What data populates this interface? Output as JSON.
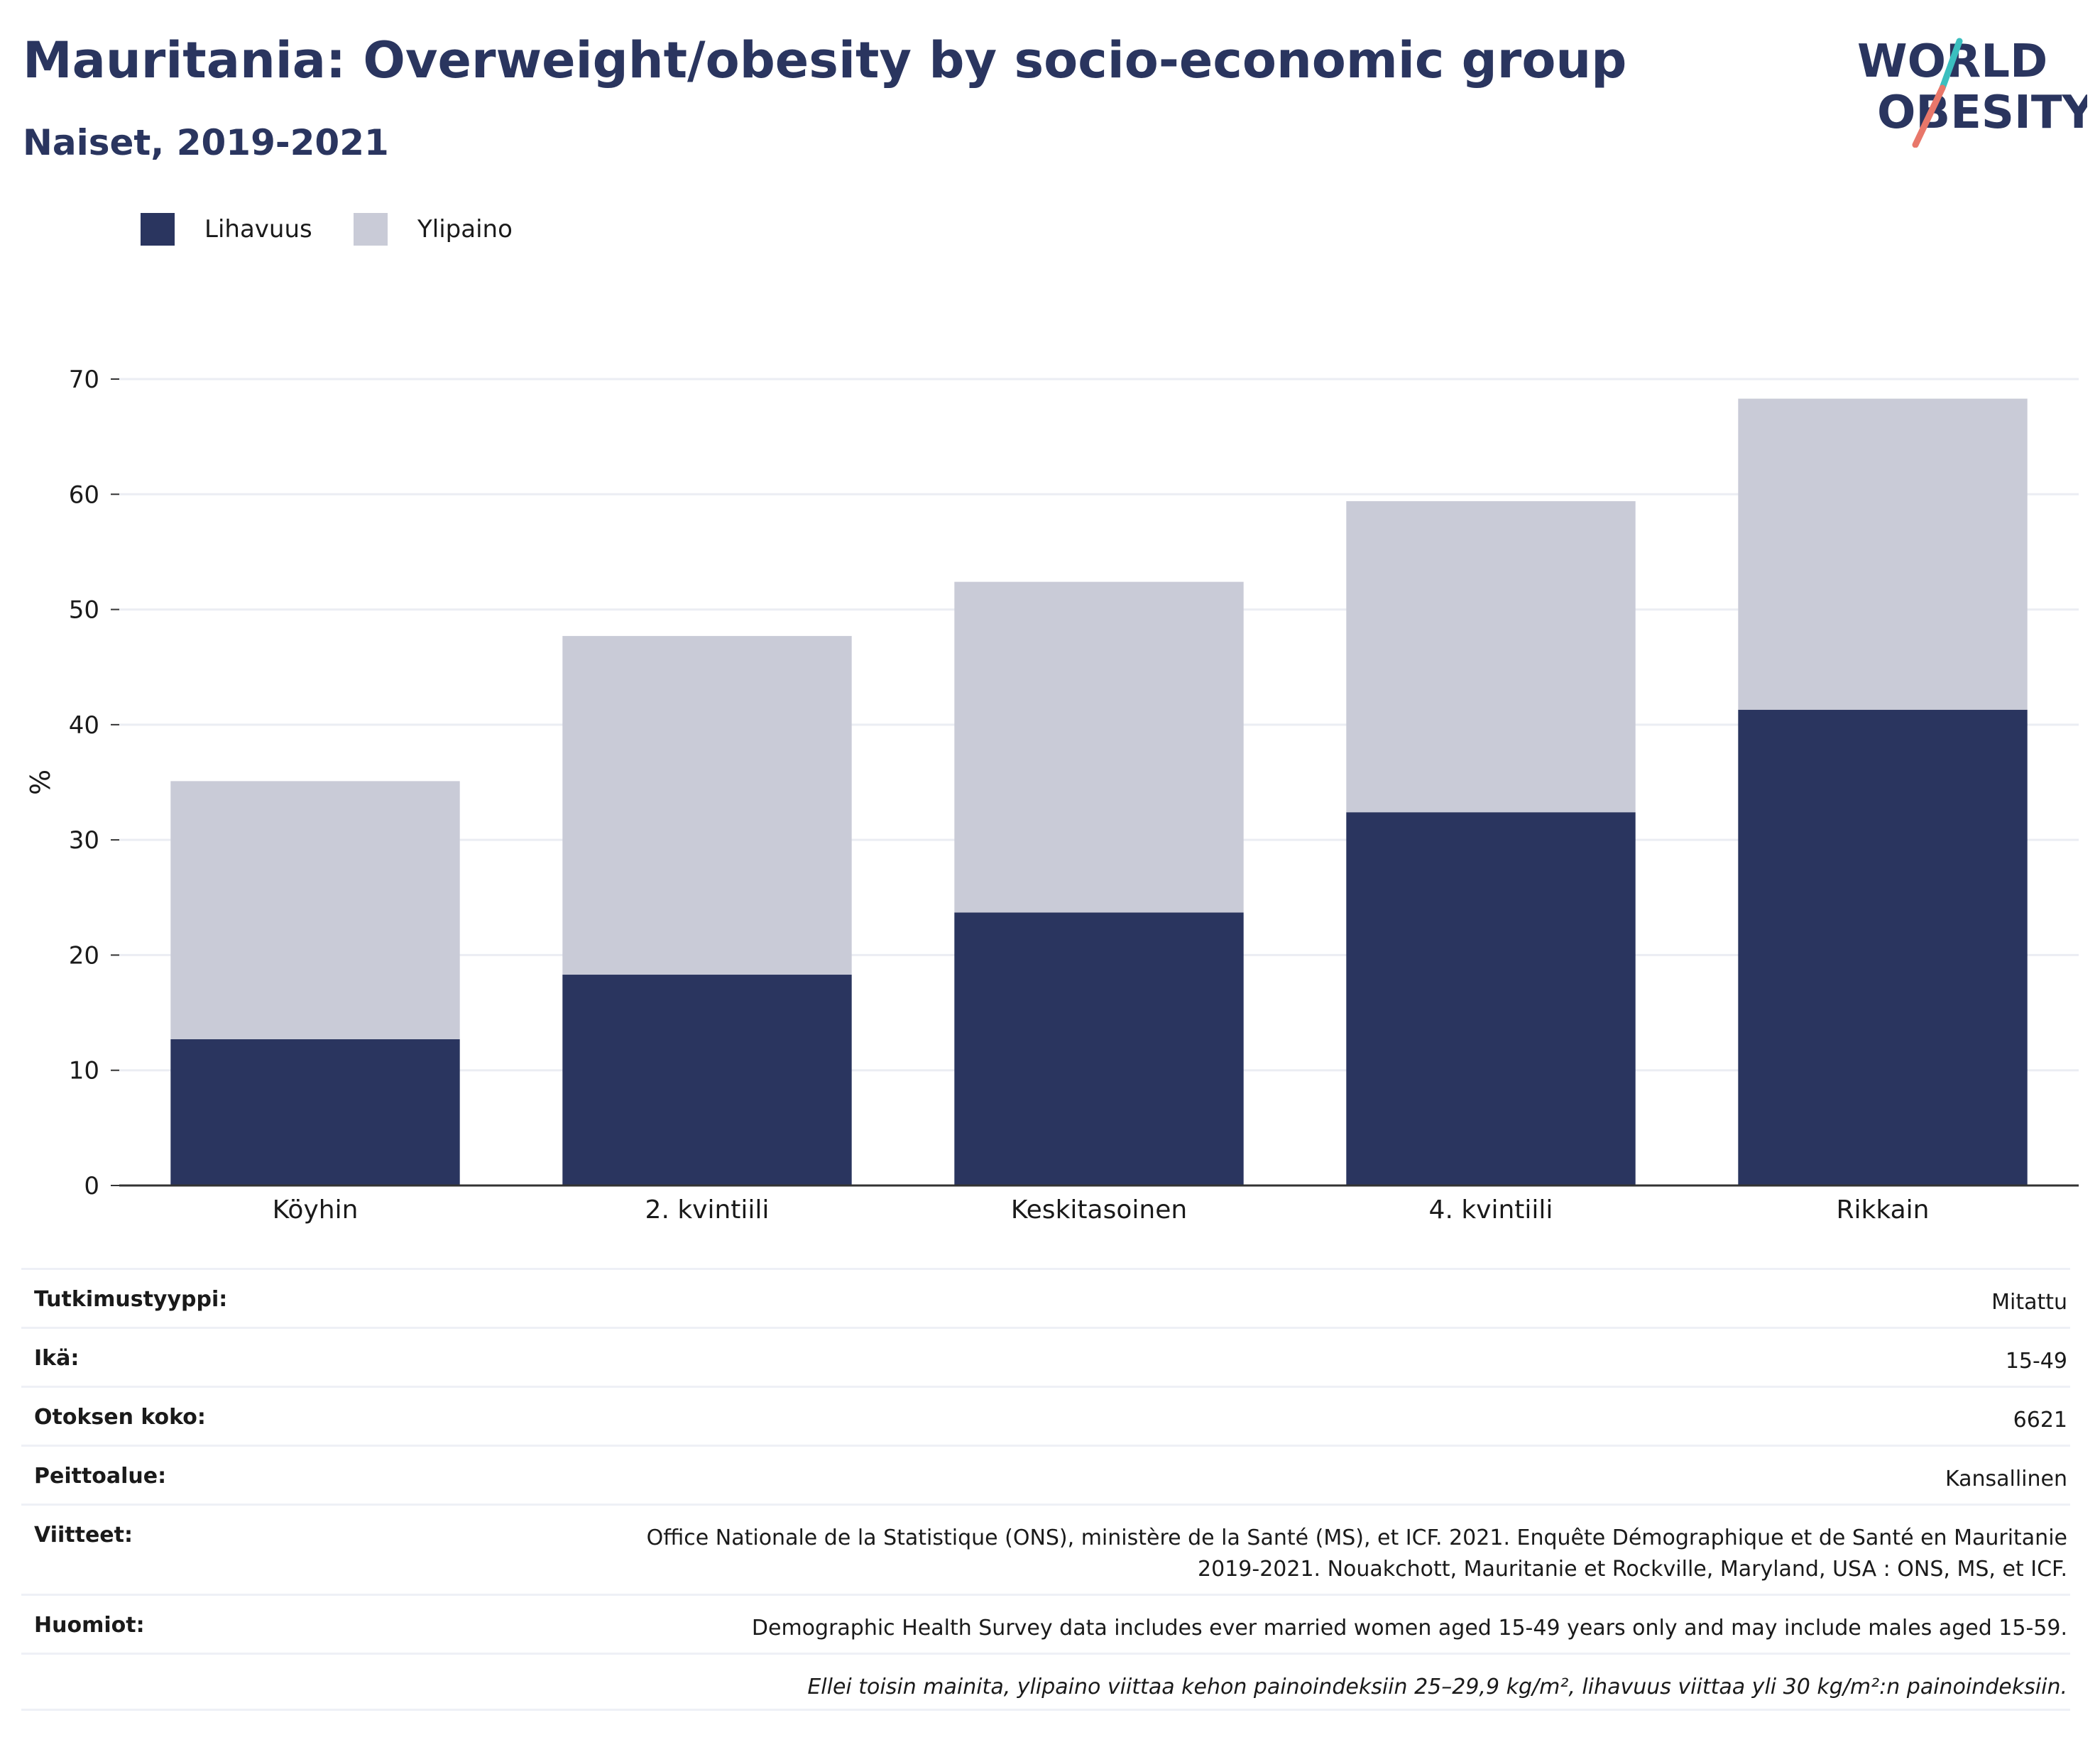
{
  "header": {
    "title": "Mauritania: Overweight/obesity by socio-economic group",
    "subtitle": "Naiset, 2019-2021"
  },
  "logo": {
    "line1": "WORLD",
    "line2": "OBESITY",
    "colors": {
      "text": "#2a355f",
      "slash_teal": "#3bbfbf",
      "slash_coral": "#e8776a"
    }
  },
  "legend": [
    {
      "label": "Lihavuus",
      "color": "#2a355f"
    },
    {
      "label": "Ylipaino",
      "color": "#c9cbd7"
    }
  ],
  "chart_data": {
    "type": "bar",
    "stacked": true,
    "categories": [
      "Köyhin",
      "2. kvintiili",
      "Keskitasoinen",
      "4. kvintiili",
      "Rikkain"
    ],
    "series": [
      {
        "name": "Lihavuus",
        "color": "#2a355f",
        "values": [
          12.7,
          18.3,
          23.7,
          32.4,
          41.3
        ]
      },
      {
        "name": "Ylipaino",
        "color": "#c9cbd7",
        "values": [
          22.4,
          29.4,
          28.7,
          27.0,
          27.0
        ]
      }
    ],
    "ylabel": "%",
    "ylim": [
      0,
      70
    ],
    "yticks": [
      0,
      10,
      20,
      30,
      40,
      50,
      60,
      70
    ],
    "grid": true
  },
  "metadata": [
    {
      "key": "Tutkimustyyppi:",
      "lines": [
        "Mitattu"
      ]
    },
    {
      "key": "Ikä:",
      "lines": [
        "15-49"
      ]
    },
    {
      "key": "Otoksen koko:",
      "lines": [
        "6621"
      ]
    },
    {
      "key": "Peittoalue:",
      "lines": [
        "Kansallinen"
      ]
    },
    {
      "key": "Viitteet:",
      "lines": [
        "Office Nationale de la Statistique (ONS), ministère de la Santé (MS), et ICF. 2021. Enquête Démographique et de Santé en Mauritanie",
        "2019-2021. Nouakchott, Mauritanie et Rockville, Maryland, USA : ONS, MS, et ICF."
      ]
    },
    {
      "key": "Huomiot:",
      "lines": [
        "Demographic Health Survey data includes ever married women aged 15-49 years only and may include males aged 15-59."
      ]
    },
    {
      "key": "",
      "lines": [
        "Ellei toisin mainita, ylipaino viittaa kehon painoindeksiin 25–29,9 kg/m², lihavuus viittaa yli 30 kg/m²:n painoindeksiin."
      ],
      "italic": true
    }
  ]
}
